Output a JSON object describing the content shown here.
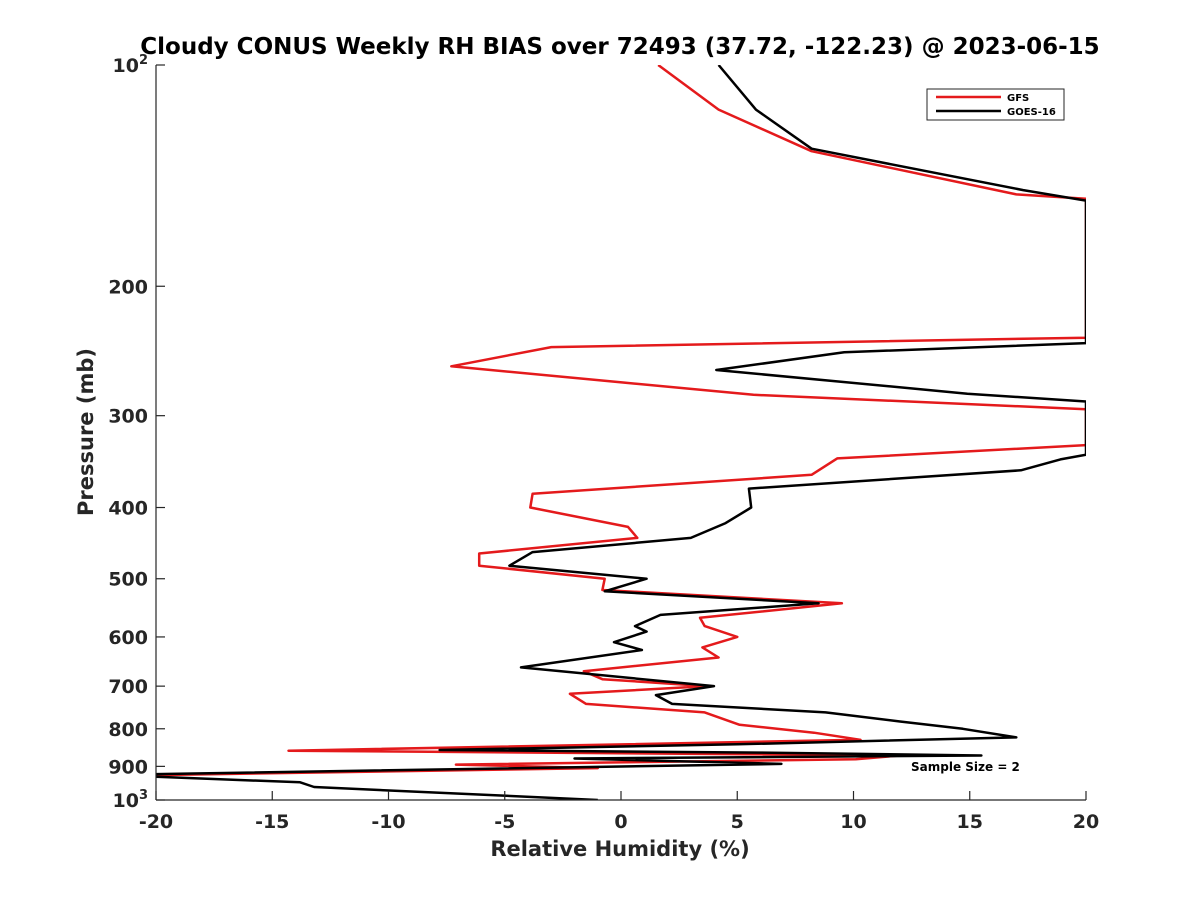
{
  "chart_data": {
    "type": "line",
    "title": "Cloudy CONUS Weekly RH BIAS over 72493 (37.72, -122.23) @ 2023-06-15",
    "xlabel": "Relative Humidity (%)",
    "ylabel": "Pressure (mb)",
    "xlim": [
      -20,
      20
    ],
    "ylim": [
      1000,
      100
    ],
    "yscale": "log",
    "y_reversed": true,
    "grid": false,
    "legend_position": "top-right",
    "x_ticks": [
      -20,
      -15,
      -10,
      -5,
      0,
      5,
      10,
      15,
      20
    ],
    "x_tick_labels": [
      "-20",
      "-15",
      "-10",
      "-5",
      "0",
      "5",
      "10",
      "15",
      "20"
    ],
    "y_ticks": [
      100,
      200,
      300,
      400,
      500,
      600,
      700,
      800,
      900,
      1000
    ],
    "y_tick_labels": [
      {
        "base": "10",
        "sup": "2"
      },
      {
        "base": "200",
        "sup": ""
      },
      {
        "base": "300",
        "sup": ""
      },
      {
        "base": "400",
        "sup": ""
      },
      {
        "base": "500",
        "sup": ""
      },
      {
        "base": "600",
        "sup": ""
      },
      {
        "base": "700",
        "sup": ""
      },
      {
        "base": "800",
        "sup": ""
      },
      {
        "base": "900",
        "sup": ""
      },
      {
        "base": "10",
        "sup": "3"
      }
    ],
    "annotation": "Sample Size = 2",
    "series": [
      {
        "name": "GFS",
        "color": "#e41a1c",
        "points": [
          [
            1.6,
            100
          ],
          [
            4.2,
            115
          ],
          [
            8.2,
            131
          ],
          [
            17.0,
            150
          ],
          [
            20.0,
            152
          ],
          [
            20.0,
            235
          ],
          [
            -3.0,
            242
          ],
          [
            -7.3,
            257
          ],
          [
            5.7,
            281
          ],
          [
            20.0,
            294
          ],
          [
            20.0,
            329
          ],
          [
            9.3,
            343
          ],
          [
            8.2,
            361
          ],
          [
            -3.8,
            383
          ],
          [
            -3.9,
            400
          ],
          [
            0.3,
            425
          ],
          [
            0.7,
            440
          ],
          [
            -6.1,
            462
          ],
          [
            -6.1,
            480
          ],
          [
            -0.7,
            500
          ],
          [
            -0.8,
            518
          ],
          [
            9.5,
            540
          ],
          [
            3.4,
            565
          ],
          [
            3.6,
            580
          ],
          [
            5.0,
            600
          ],
          [
            3.5,
            620
          ],
          [
            4.2,
            640
          ],
          [
            -1.6,
            668
          ],
          [
            -0.8,
            685
          ],
          [
            3.7,
            700
          ],
          [
            -2.2,
            717
          ],
          [
            -1.5,
            740
          ],
          [
            3.6,
            760
          ],
          [
            5.1,
            790
          ],
          [
            8.3,
            810
          ],
          [
            10.3,
            828
          ],
          [
            -14.3,
            857
          ],
          [
            12.0,
            870
          ],
          [
            10.1,
            880
          ],
          [
            -7.1,
            895
          ],
          [
            -1.0,
            905
          ],
          [
            -20.0,
            925
          ]
        ]
      },
      {
        "name": "GOES-16",
        "color": "#000000",
        "points": [
          [
            4.2,
            100
          ],
          [
            5.8,
            115
          ],
          [
            8.2,
            130
          ],
          [
            17.3,
            148
          ],
          [
            20.0,
            153
          ],
          [
            20.0,
            239
          ],
          [
            9.6,
            246
          ],
          [
            4.1,
            260
          ],
          [
            14.9,
            280
          ],
          [
            20.0,
            287
          ],
          [
            20.0,
            339
          ],
          [
            18.9,
            344
          ],
          [
            17.2,
            356
          ],
          [
            5.5,
            377
          ],
          [
            5.6,
            400
          ],
          [
            4.5,
            420
          ],
          [
            3.0,
            440
          ],
          [
            -3.8,
            460
          ],
          [
            -4.8,
            480
          ],
          [
            1.1,
            500
          ],
          [
            -0.7,
            520
          ],
          [
            8.5,
            540
          ],
          [
            1.7,
            560
          ],
          [
            0.6,
            580
          ],
          [
            1.1,
            590
          ],
          [
            -0.3,
            610
          ],
          [
            0.9,
            625
          ],
          [
            -4.3,
            660
          ],
          [
            4.0,
            700
          ],
          [
            1.5,
            720
          ],
          [
            2.2,
            740
          ],
          [
            8.8,
            760
          ],
          [
            12.0,
            782
          ],
          [
            14.7,
            800
          ],
          [
            17.0,
            822
          ],
          [
            5.0,
            840
          ],
          [
            -7.8,
            855
          ],
          [
            6.0,
            862
          ],
          [
            15.5,
            870
          ],
          [
            -2.0,
            878
          ],
          [
            6.9,
            893
          ],
          [
            -20.0,
            922
          ],
          [
            -20.0,
            930
          ],
          [
            -13.8,
            946
          ],
          [
            -13.2,
            960
          ],
          [
            -1.0,
            1000
          ]
        ]
      }
    ]
  }
}
